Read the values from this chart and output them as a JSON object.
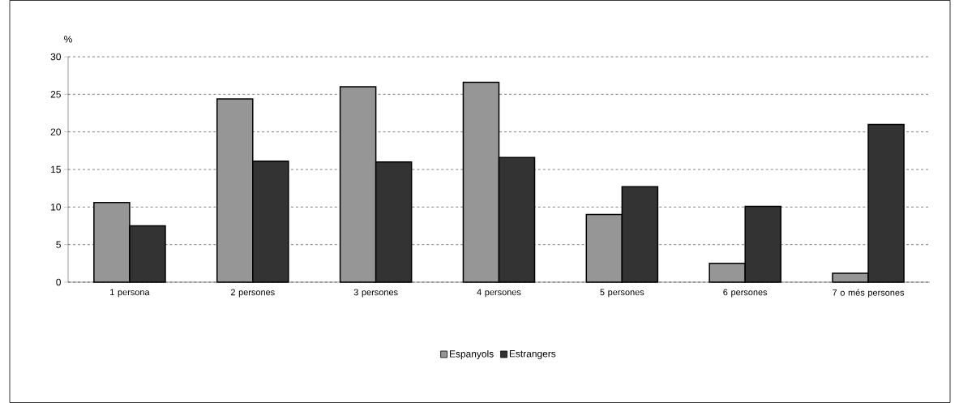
{
  "chart_data": {
    "type": "bar",
    "ylabel": "%",
    "categories": [
      "1 persona",
      "2 persones",
      "3 persones",
      "4 persones",
      "5 persones",
      "6 persones",
      "7 o més persones"
    ],
    "series": [
      {
        "name": "Espanyols",
        "color": "#969696",
        "values": [
          10.6,
          24.4,
          26.0,
          26.6,
          9.0,
          2.5,
          1.2
        ]
      },
      {
        "name": "Estrangers",
        "color": "#333333",
        "values": [
          7.5,
          16.1,
          16.0,
          16.6,
          12.7,
          10.1,
          21.0
        ]
      }
    ],
    "ylim": [
      0,
      30
    ],
    "yticks": [
      0,
      5,
      10,
      15,
      20,
      25,
      30
    ],
    "grid": "y",
    "legend": "bottom"
  }
}
